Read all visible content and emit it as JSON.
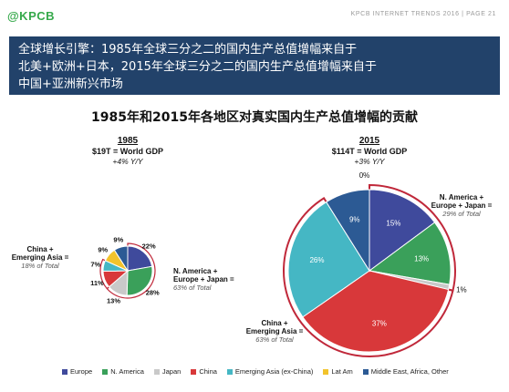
{
  "header": {
    "logo": "@KPCB",
    "page_info": "KPCB INTERNET TRENDS 2016 | PAGE 21"
  },
  "banner": {
    "lines": [
      "全球增长引擎：1985年全球三分之二的国内生产总值增幅来自于",
      "北美+欧洲+日本，2015年全球三分之二的国内生产总值增幅来自于",
      "中国+亚洲新兴市场"
    ]
  },
  "colors": {
    "Europe": "#3f4a9c",
    "N. America": "#3aa05a",
    "Japan": "#c9c9c9",
    "China": "#d8383a",
    "Emerging Asia (ex-China)": "#45b7c4",
    "Lat Am": "#f2c32c",
    "Middle East, Africa, Other": "#2c5a94",
    "group_outline": "#c0283a"
  },
  "chart_data": {
    "type": "pie",
    "title": "1985年和2015年各地区对真实国内生产总值增幅的贡献",
    "legend": {
      "placement": "bottom",
      "entries": [
        "Europe",
        "N. America",
        "Japan",
        "China",
        "Emerging Asia (ex-China)",
        "Lat Am",
        "Middle East, Africa, Other"
      ]
    },
    "pies": [
      {
        "year": "1985",
        "gdp": "$19T = World GDP",
        "growth": "+4% Y/Y",
        "slices": [
          {
            "label": "Europe",
            "value": 22,
            "text": "22%"
          },
          {
            "label": "N. America",
            "value": 28,
            "text": "28%"
          },
          {
            "label": "Japan",
            "value": 13,
            "text": "13%"
          },
          {
            "label": "China",
            "value": 11,
            "text": "11%"
          },
          {
            "label": "Emerging Asia (ex-China)",
            "value": 7,
            "text": "7%"
          },
          {
            "label": "Lat Am",
            "value": 9,
            "text": "9%"
          },
          {
            "label": "Middle East, Africa, Other",
            "value": 9,
            "text": "9%"
          }
        ],
        "annotations": [
          {
            "title": [
              "N. America +",
              "Europe + Japan ="
            ],
            "subtitle": "63% of Total"
          },
          {
            "title": [
              "China +",
              "Emerging Asia ="
            ],
            "subtitle": "18% of Total"
          }
        ]
      },
      {
        "year": "2015",
        "gdp": "$114T = World GDP",
        "growth": "+3% Y/Y",
        "slices": [
          {
            "label": "Europe",
            "value": 15,
            "text": "15%"
          },
          {
            "label": "N. America",
            "value": 13,
            "text": "13%"
          },
          {
            "label": "Japan",
            "value": 1,
            "text": "1%"
          },
          {
            "label": "China",
            "value": 37,
            "text": "37%"
          },
          {
            "label": "Emerging Asia (ex-China)",
            "value": 26,
            "text": "26%"
          },
          {
            "label": "Lat Am",
            "value": 0,
            "text": "0%"
          },
          {
            "label": "Middle East, Africa, Other",
            "value": 9,
            "text": "9%"
          }
        ],
        "annotations": [
          {
            "title": [
              "N. America +",
              "Europe + Japan ="
            ],
            "subtitle": "29% of Total"
          },
          {
            "title": [
              "China +",
              "Emerging Asia ="
            ],
            "subtitle": "63% of Total"
          }
        ]
      }
    ]
  }
}
